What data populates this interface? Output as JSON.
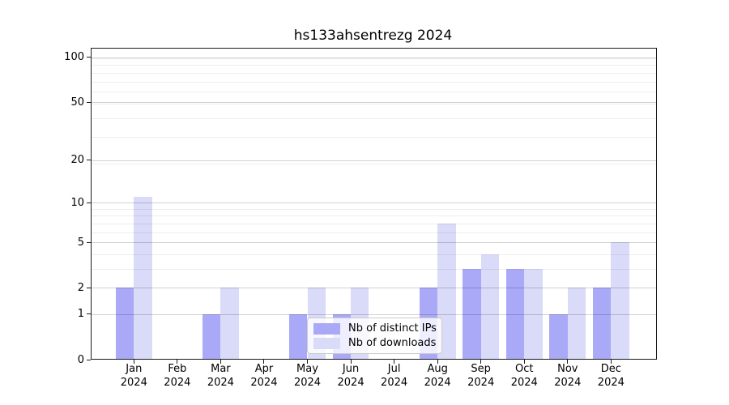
{
  "chart_data": {
    "type": "bar",
    "title": "hs133ahsentrezg 2024",
    "x": {
      "categories": [
        "Jan",
        "Feb",
        "Mar",
        "Apr",
        "May",
        "Jun",
        "Jul",
        "Aug",
        "Sep",
        "Oct",
        "Nov",
        "Dec"
      ],
      "year_suffix": "2024"
    },
    "series": [
      {
        "name": "Nb of distinct IPs",
        "color": "#a9a9f8",
        "values": [
          2,
          0,
          1,
          0,
          1,
          1,
          0,
          2,
          3,
          3,
          1,
          2
        ]
      },
      {
        "name": "Nb of downloads",
        "color": "#dadaf9",
        "values": [
          11,
          0,
          2,
          0,
          2,
          2,
          0,
          7,
          4,
          3,
          2,
          5
        ]
      }
    ],
    "y_axis": {
      "scale": "log1p",
      "tick_values": [
        0,
        1,
        2,
        5,
        10,
        20,
        50,
        100
      ],
      "tick_labels": [
        "0",
        "1",
        "2",
        "5",
        "10",
        "20",
        "50",
        "100"
      ],
      "minor_gridline_values": [
        3,
        4,
        6,
        7,
        8,
        9,
        19,
        29,
        39,
        49,
        59,
        69,
        79,
        89,
        99
      ],
      "ylim": [
        0,
        117
      ]
    },
    "legend": {
      "position": "lower center"
    },
    "grid": true
  },
  "colors": {
    "major_grid": "rgba(0,0,0,0.18)",
    "minor_grid": "rgba(0,0,0,0.065)",
    "spine": "#1a1a1a",
    "background": "#ffffff"
  }
}
